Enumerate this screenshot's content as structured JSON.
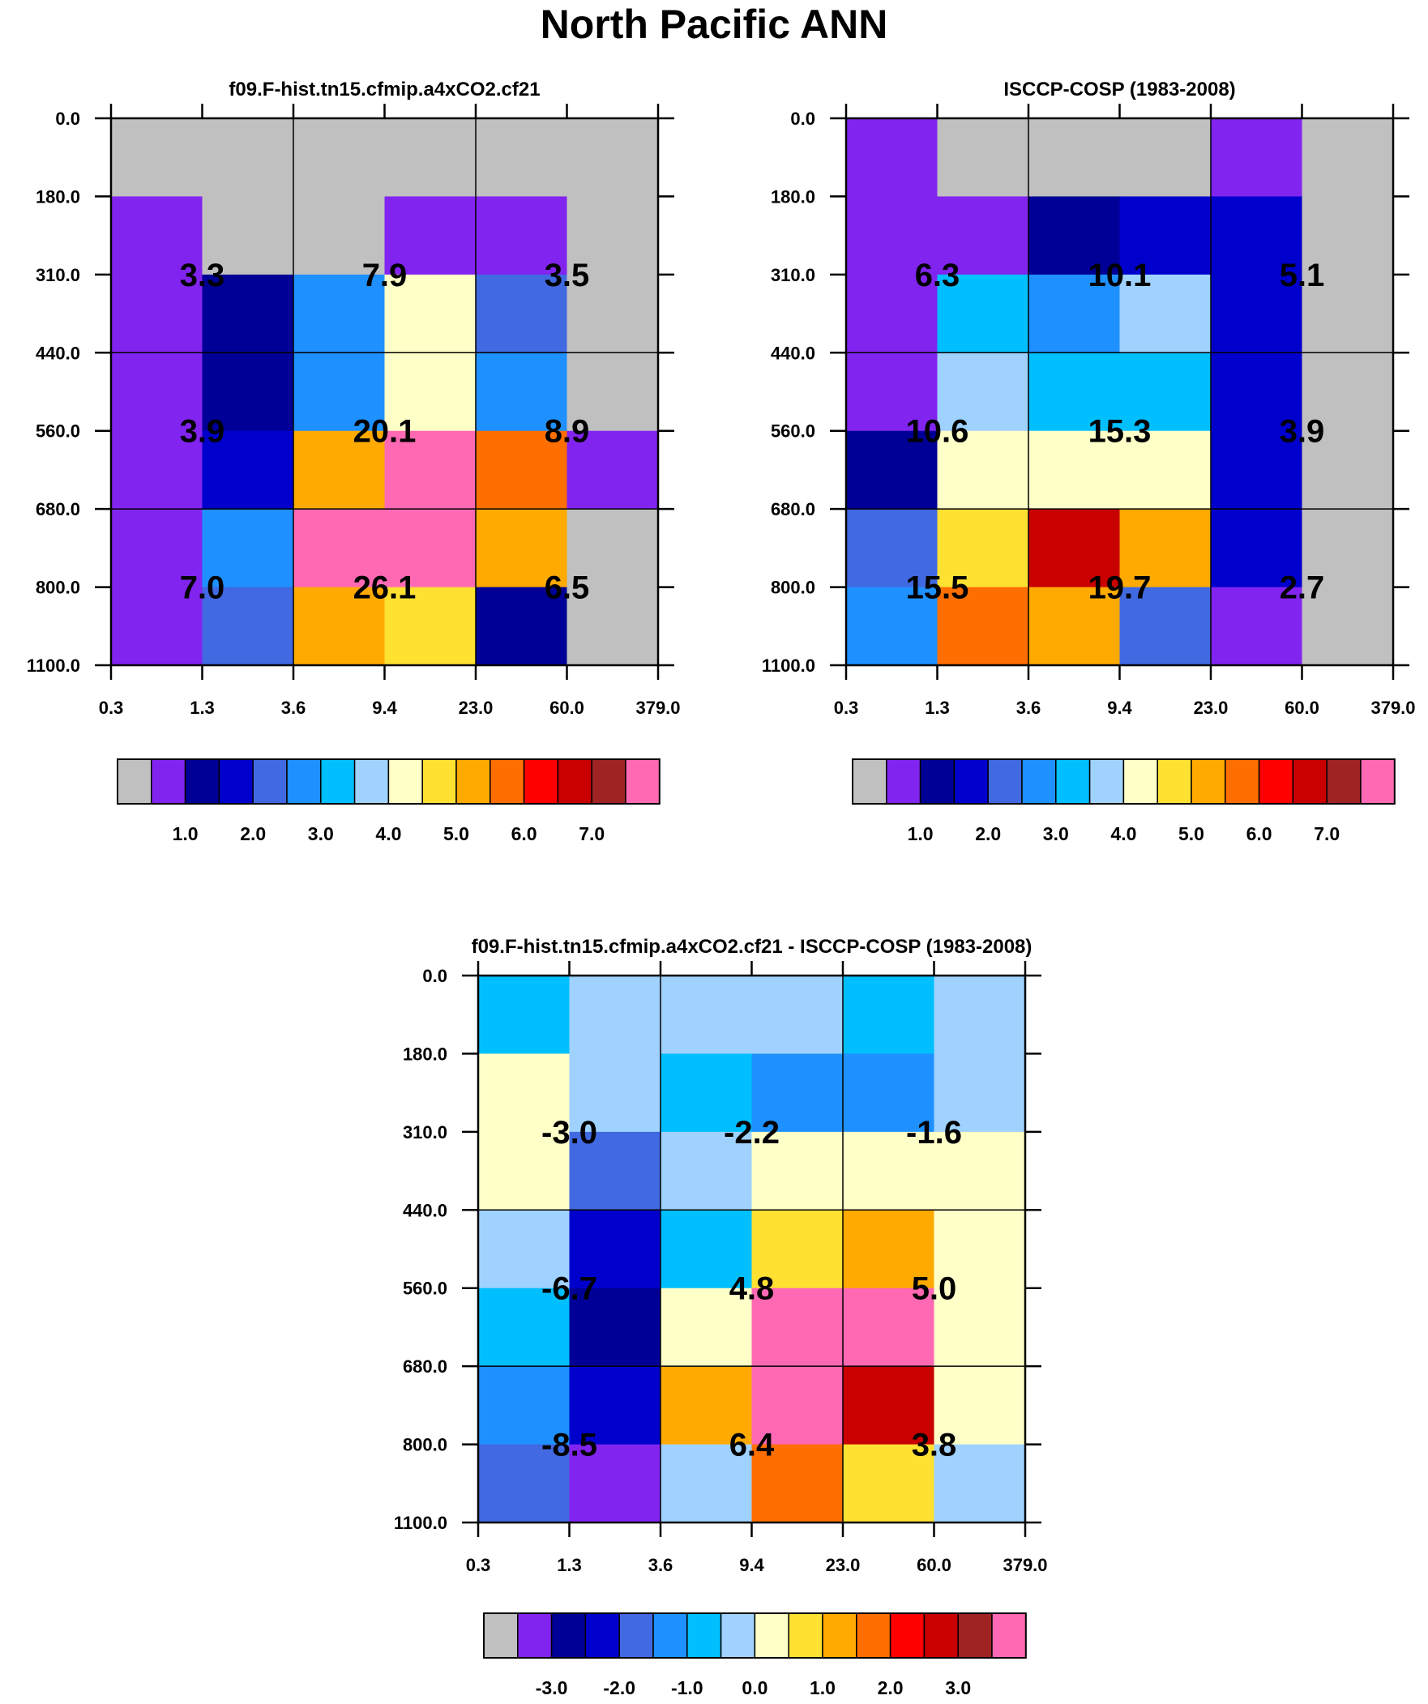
{
  "figure": {
    "title": "North Pacific ANN"
  },
  "chart_data": [
    {
      "type": "heatmap",
      "id": "model",
      "title": "f09.F-hist.tn15.cfmip.a4xCO2.cf21",
      "x_tick_labels": [
        "0.3",
        "1.3",
        "3.6",
        "9.4",
        "23.0",
        "60.0",
        "379.0"
      ],
      "y_tick_labels": [
        "0.0",
        "180.0",
        "310.0",
        "440.0",
        "560.0",
        "680.0",
        "800.0",
        "1100.0"
      ],
      "cells": [
        [
          0,
          0,
          0,
          0,
          0,
          0
        ],
        [
          1,
          0,
          0,
          1,
          1,
          0
        ],
        [
          1,
          2,
          5,
          8,
          4,
          0
        ],
        [
          1,
          2,
          5,
          8,
          5,
          0
        ],
        [
          1,
          3,
          10,
          15,
          11,
          1
        ],
        [
          1,
          5,
          15,
          15,
          10,
          0
        ],
        [
          1,
          4,
          10,
          9,
          2,
          0
        ]
      ],
      "box_values": [
        [
          "3.3",
          "7.9",
          "3.5"
        ],
        [
          "3.9",
          "20.1",
          "8.9"
        ],
        [
          "7.0",
          "26.1",
          "6.5"
        ]
      ],
      "colorbar": {
        "colors": [
          "#c0c0c0",
          "#8224f0",
          "#000096",
          "#0000cd",
          "#4169e1",
          "#1e90ff",
          "#00bfff",
          "#a0d2ff",
          "#ffffc8",
          "#ffe132",
          "#ffaa00",
          "#ff6e00",
          "#ff0000",
          "#c80000",
          "#a02323",
          "#ff69b4"
        ],
        "labels": [
          "1.0",
          "2.0",
          "3.0",
          "4.0",
          "5.0",
          "6.0",
          "7.0"
        ]
      }
    },
    {
      "type": "heatmap",
      "id": "obs",
      "title": "ISCCP-COSP (1983-2008)",
      "x_tick_labels": [
        "0.3",
        "1.3",
        "3.6",
        "9.4",
        "23.0",
        "60.0",
        "379.0"
      ],
      "y_tick_labels": [
        "0.0",
        "180.0",
        "310.0",
        "440.0",
        "560.0",
        "680.0",
        "800.0",
        "1100.0"
      ],
      "cells": [
        [
          1,
          0,
          0,
          0,
          1,
          0
        ],
        [
          1,
          1,
          2,
          3,
          3,
          0
        ],
        [
          1,
          6,
          5,
          7,
          3,
          0
        ],
        [
          1,
          7,
          6,
          6,
          3,
          0
        ],
        [
          2,
          8,
          8,
          8,
          3,
          0
        ],
        [
          4,
          9,
          13,
          10,
          3,
          0
        ],
        [
          5,
          11,
          10,
          4,
          1,
          0
        ]
      ],
      "box_values": [
        [
          "6.3",
          "10.1",
          "5.1"
        ],
        [
          "10.6",
          "15.3",
          "3.9"
        ],
        [
          "15.5",
          "19.7",
          "2.7"
        ]
      ],
      "colorbar": {
        "colors": [
          "#c0c0c0",
          "#8224f0",
          "#000096",
          "#0000cd",
          "#4169e1",
          "#1e90ff",
          "#00bfff",
          "#a0d2ff",
          "#ffffc8",
          "#ffe132",
          "#ffaa00",
          "#ff6e00",
          "#ff0000",
          "#c80000",
          "#a02323",
          "#ff69b4"
        ],
        "labels": [
          "1.0",
          "2.0",
          "3.0",
          "4.0",
          "5.0",
          "6.0",
          "7.0"
        ]
      }
    },
    {
      "type": "heatmap",
      "id": "diff",
      "title": "f09.F-hist.tn15.cfmip.a4xCO2.cf21 - ISCCP-COSP (1983-2008)",
      "x_tick_labels": [
        "0.3",
        "1.3",
        "3.6",
        "9.4",
        "23.0",
        "60.0",
        "379.0"
      ],
      "y_tick_labels": [
        "0.0",
        "180.0",
        "310.0",
        "440.0",
        "560.0",
        "680.0",
        "800.0",
        "1100.0"
      ],
      "cells": [
        [
          6,
          7,
          7,
          7,
          6,
          7
        ],
        [
          8,
          7,
          6,
          5,
          5,
          7
        ],
        [
          8,
          4,
          7,
          8,
          8,
          8
        ],
        [
          7,
          3,
          6,
          9,
          10,
          8
        ],
        [
          6,
          2,
          8,
          15,
          15,
          8
        ],
        [
          5,
          3,
          10,
          15,
          13,
          8
        ],
        [
          4,
          1,
          7,
          11,
          9,
          7
        ]
      ],
      "box_values": [
        [
          "-3.0",
          "-2.2",
          "-1.6"
        ],
        [
          "-6.7",
          "4.8",
          "5.0"
        ],
        [
          "-8.5",
          "6.4",
          "3.8"
        ]
      ],
      "colorbar": {
        "colors": [
          "#c0c0c0",
          "#8224f0",
          "#000096",
          "#0000cd",
          "#4169e1",
          "#1e90ff",
          "#00bfff",
          "#a0d2ff",
          "#ffffc8",
          "#ffe132",
          "#ffaa00",
          "#ff6e00",
          "#ff0000",
          "#c80000",
          "#a02323",
          "#ff69b4"
        ],
        "labels": [
          "-3.0",
          "-2.0",
          "-1.0",
          "0.0",
          "1.0",
          "2.0",
          "3.0"
        ]
      }
    }
  ]
}
